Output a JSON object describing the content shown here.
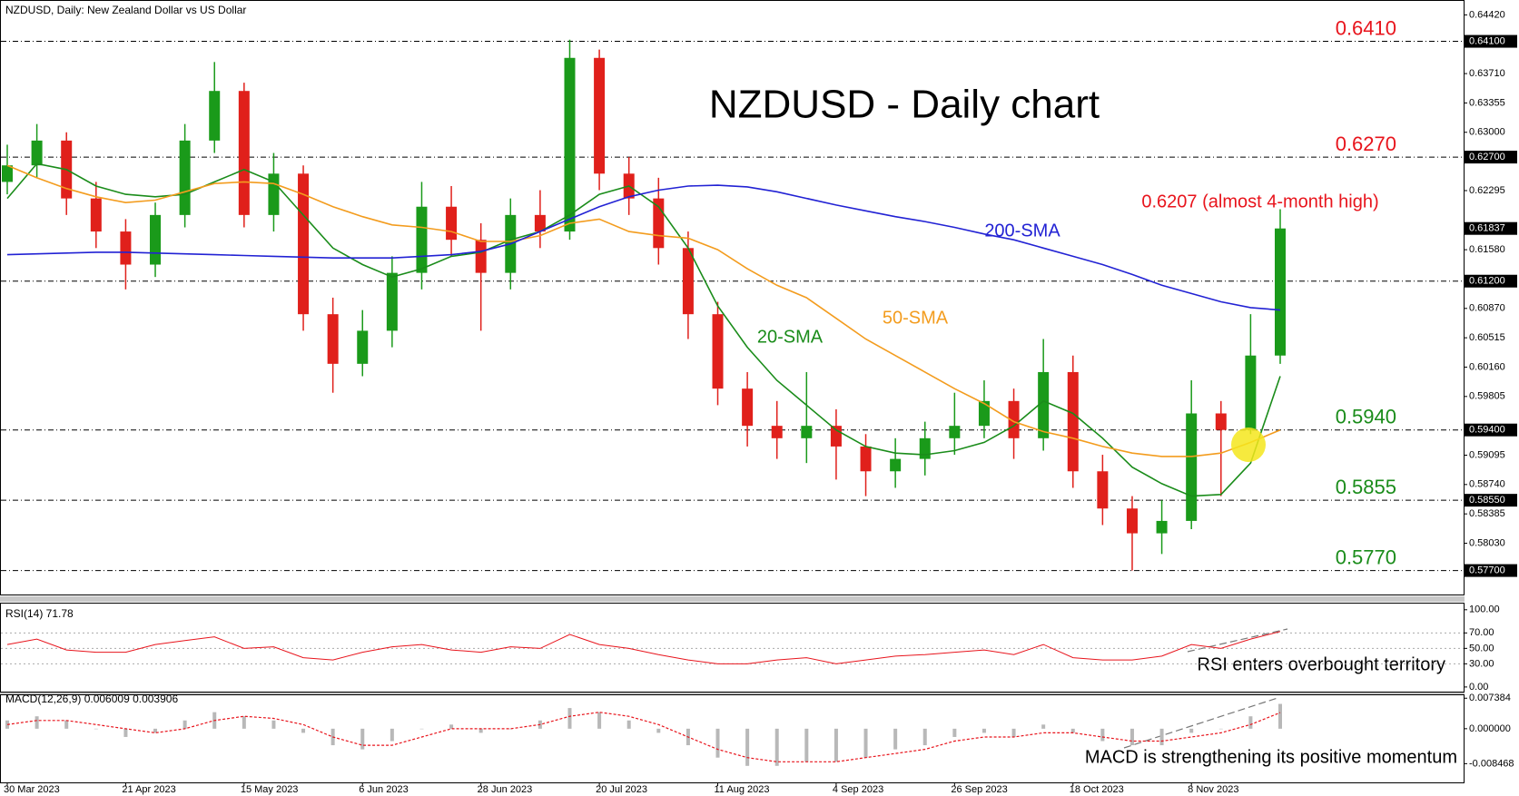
{
  "chart_data": {
    "type": "candlestick",
    "header": "NZDUSD, Daily:  New Zealand Dollar vs US Dollar",
    "title": "NZDUSD - Daily chart",
    "categories": [
      "30 Mar 2023",
      null,
      null,
      null,
      "21 Apr 2023",
      null,
      null,
      null,
      "15 May 2023",
      null,
      null,
      null,
      "6 Jun 2023",
      null,
      null,
      null,
      "28 Jun 2023",
      null,
      null,
      null,
      "20 Jul 2023",
      null,
      null,
      null,
      "11 Aug 2023",
      null,
      null,
      null,
      "4 Sep 2023",
      null,
      null,
      null,
      "26 Sep 2023",
      null,
      null,
      null,
      "18 Oct 2023",
      null,
      null,
      null,
      "8 Nov 2023",
      null,
      null,
      null
    ],
    "open": [
      0.624,
      0.626,
      0.629,
      0.622,
      0.618,
      0.614,
      0.62,
      0.629,
      0.635,
      0.62,
      0.625,
      0.608,
      0.602,
      0.606,
      0.613,
      0.621,
      0.617,
      0.613,
      0.62,
      0.618,
      0.639,
      0.625,
      0.622,
      0.616,
      0.608,
      0.599,
      0.5945,
      0.593,
      0.5945,
      0.592,
      0.589,
      0.5905,
      0.593,
      0.5945,
      0.5975,
      0.593,
      0.601,
      0.589,
      0.5845,
      0.5815,
      0.583,
      0.596,
      0.594,
      0.603
    ],
    "high": [
      0.6285,
      0.631,
      0.63,
      0.624,
      0.6195,
      0.6215,
      0.631,
      0.6385,
      0.636,
      0.6275,
      0.626,
      0.61,
      0.6085,
      0.615,
      0.624,
      0.6235,
      0.619,
      0.622,
      0.623,
      0.6412,
      0.64,
      0.627,
      0.6245,
      0.618,
      0.6095,
      0.601,
      0.5975,
      0.601,
      0.5965,
      0.5935,
      0.593,
      0.595,
      0.5985,
      0.6,
      0.599,
      0.605,
      0.603,
      0.591,
      0.586,
      0.5855,
      0.6,
      0.5975,
      0.608,
      0.6207
    ],
    "low": [
      0.6225,
      0.6245,
      0.62,
      0.616,
      0.611,
      0.6125,
      0.6185,
      0.6275,
      0.6185,
      0.618,
      0.606,
      0.5985,
      0.6005,
      0.604,
      0.611,
      0.615,
      0.606,
      0.611,
      0.616,
      0.617,
      0.623,
      0.62,
      0.614,
      0.605,
      0.597,
      0.592,
      0.5905,
      0.59,
      0.588,
      0.586,
      0.587,
      0.5885,
      0.591,
      0.593,
      0.5905,
      0.5915,
      0.587,
      0.5825,
      0.577,
      0.579,
      0.582,
      0.586,
      0.5935,
      0.602
    ],
    "close": [
      0.626,
      0.629,
      0.622,
      0.618,
      0.614,
      0.62,
      0.629,
      0.635,
      0.62,
      0.625,
      0.608,
      0.602,
      0.606,
      0.613,
      0.621,
      0.617,
      0.613,
      0.62,
      0.618,
      0.639,
      0.625,
      0.622,
      0.616,
      0.608,
      0.599,
      0.5945,
      0.593,
      0.5945,
      0.592,
      0.589,
      0.5905,
      0.593,
      0.5945,
      0.5975,
      0.593,
      0.601,
      0.589,
      0.5845,
      0.5815,
      0.583,
      0.596,
      0.594,
      0.603,
      0.61837
    ],
    "up_color": "#1a9a1a",
    "down_color": "#e0201b",
    "ylim": [
      0.5741,
      0.646
    ],
    "yticks": [
      {
        "value": 0.6442,
        "label": "0.64420"
      },
      {
        "value": 0.6371,
        "label": "0.63710"
      },
      {
        "value": 0.63355,
        "label": "0.63355"
      },
      {
        "value": 0.63,
        "label": "0.63000"
      },
      {
        "value": 0.62295,
        "label": "0.62295"
      },
      {
        "value": 0.6158,
        "label": "0.61580"
      },
      {
        "value": 0.6087,
        "label": "0.60870"
      },
      {
        "value": 0.60515,
        "label": "0.60515"
      },
      {
        "value": 0.6016,
        "label": "0.60160"
      },
      {
        "value": 0.59805,
        "label": "0.59805"
      },
      {
        "value": 0.59095,
        "label": "0.59095"
      },
      {
        "value": 0.5874,
        "label": "0.58740"
      },
      {
        "value": 0.58385,
        "label": "0.58385"
      },
      {
        "value": 0.5803,
        "label": "0.58030"
      }
    ],
    "levels": [
      {
        "value": 0.641,
        "label": "0.64100",
        "annotation": "0.6410",
        "color": "#e8141c"
      },
      {
        "value": 0.627,
        "label": "0.62700",
        "annotation": "0.6270",
        "color": "#e8141c"
      },
      {
        "value": 0.612,
        "label": "0.61200"
      },
      {
        "value": 0.594,
        "label": "0.59400",
        "annotation": "0.5940",
        "color": "#1a8c1a"
      },
      {
        "value": 0.5855,
        "label": "0.58550",
        "annotation": "0.5855",
        "color": "#1a8c1a"
      },
      {
        "value": 0.577,
        "label": "0.57700",
        "annotation": "0.5770",
        "color": "#1a8c1a"
      }
    ],
    "last_price": {
      "value": 0.61837,
      "label": "0.61837"
    },
    "series": [
      {
        "name": "20-SMA",
        "color": "#1a8c1a",
        "values": [
          0.622,
          0.6262,
          0.6255,
          0.6235,
          0.6225,
          0.6222,
          0.6225,
          0.624,
          0.6255,
          0.624,
          0.62,
          0.616,
          0.614,
          0.6125,
          0.6135,
          0.615,
          0.6155,
          0.617,
          0.618,
          0.62,
          0.6225,
          0.6235,
          0.621,
          0.616,
          0.609,
          0.604,
          0.6,
          0.597,
          0.594,
          0.592,
          0.5912,
          0.591,
          0.5915,
          0.5925,
          0.5945,
          0.5975,
          0.596,
          0.593,
          0.5895,
          0.5875,
          0.586,
          0.5862,
          0.59,
          0.6005
        ]
      },
      {
        "name": "50-SMA",
        "color": "#f39c1e",
        "values": [
          0.626,
          0.6245,
          0.6232,
          0.6222,
          0.6215,
          0.6218,
          0.6228,
          0.6238,
          0.624,
          0.6238,
          0.6225,
          0.621,
          0.6198,
          0.6188,
          0.6185,
          0.618,
          0.6168,
          0.6168,
          0.6175,
          0.619,
          0.6195,
          0.618,
          0.6175,
          0.6172,
          0.6158,
          0.6135,
          0.6115,
          0.61,
          0.6075,
          0.605,
          0.603,
          0.601,
          0.599,
          0.5972,
          0.595,
          0.5938,
          0.593,
          0.592,
          0.5912,
          0.5908,
          0.5908,
          0.5912,
          0.5925,
          0.594
        ]
      },
      {
        "name": "200-SMA",
        "color": "#2222d4",
        "values": [
          0.6152,
          0.6153,
          0.6154,
          0.6155,
          0.6155,
          0.6154,
          0.6153,
          0.6152,
          0.6151,
          0.615,
          0.6149,
          0.6148,
          0.6148,
          0.6148,
          0.615,
          0.6152,
          0.6156,
          0.6165,
          0.618,
          0.6195,
          0.621,
          0.6222,
          0.623,
          0.6235,
          0.6236,
          0.6234,
          0.6228,
          0.622,
          0.6212,
          0.6205,
          0.6198,
          0.6192,
          0.6185,
          0.6177,
          0.617,
          0.616,
          0.615,
          0.614,
          0.6128,
          0.6115,
          0.6105,
          0.6095,
          0.6088,
          0.6085
        ]
      }
    ],
    "annotations": [
      {
        "text": "0.6207 (almost 4-month high)",
        "color": "#e8141c"
      }
    ],
    "rsi": {
      "label": "RSI(14) 71.78",
      "color": "#e8141c",
      "ylim": [
        -6,
        108
      ],
      "yticks": [
        {
          "value": 100,
          "label": "100.00"
        },
        {
          "value": 70,
          "label": "70.00"
        },
        {
          "value": 50,
          "label": "50.00"
        },
        {
          "value": 30,
          "label": "30.00"
        },
        {
          "value": 0,
          "label": "0.00"
        }
      ],
      "values": [
        55,
        62,
        48,
        45,
        45,
        55,
        60,
        65,
        50,
        52,
        38,
        35,
        45,
        52,
        55,
        48,
        45,
        52,
        50,
        68,
        55,
        50,
        42,
        35,
        30,
        30,
        35,
        38,
        30,
        35,
        40,
        42,
        45,
        48,
        42,
        55,
        38,
        35,
        35,
        40,
        55,
        50,
        62,
        71.78
      ],
      "annotation": "RSI enters overbought territory"
    },
    "macd": {
      "label": "MACD(12,26,9) 0.006009 0.003906",
      "histogram_color": "#b8b8b8",
      "signal_color": "#e8141c",
      "ylim": [
        -0.013,
        0.0081
      ],
      "yticks": [
        {
          "value": 0.007384,
          "label": "0.007384"
        },
        {
          "value": 0,
          "label": "0.000000"
        },
        {
          "value": -0.008468,
          "label": "-0.008468"
        }
      ],
      "histogram": [
        0.002,
        0.003,
        0.002,
        0.0,
        -0.002,
        -0.001,
        0.002,
        0.004,
        0.003,
        0.002,
        -0.001,
        -0.004,
        -0.005,
        -0.003,
        0.0,
        0.001,
        -0.001,
        0.0,
        0.002,
        0.005,
        0.004,
        0.002,
        -0.001,
        -0.004,
        -0.007,
        -0.009,
        -0.009,
        -0.008,
        -0.008,
        -0.007,
        -0.005,
        -0.004,
        -0.002,
        -0.001,
        -0.002,
        0.001,
        -0.001,
        -0.003,
        -0.004,
        -0.004,
        -0.001,
        0.0,
        0.003,
        0.006009
      ],
      "signal": [
        0.001,
        0.002,
        0.002,
        0.001,
        0.0,
        -0.001,
        0.0,
        0.002,
        0.003,
        0.0025,
        0.001,
        -0.002,
        -0.004,
        -0.004,
        -0.002,
        0.0,
        0.0,
        0.0,
        0.001,
        0.003,
        0.004,
        0.003,
        0.001,
        -0.002,
        -0.005,
        -0.007,
        -0.008,
        -0.008,
        -0.008,
        -0.007,
        -0.006,
        -0.005,
        -0.003,
        -0.002,
        -0.002,
        -0.001,
        -0.001,
        -0.002,
        -0.003,
        -0.003,
        -0.002,
        -0.001,
        0.001,
        0.003906
      ],
      "annotation": "MACD is strengthening its positive momentum"
    }
  }
}
